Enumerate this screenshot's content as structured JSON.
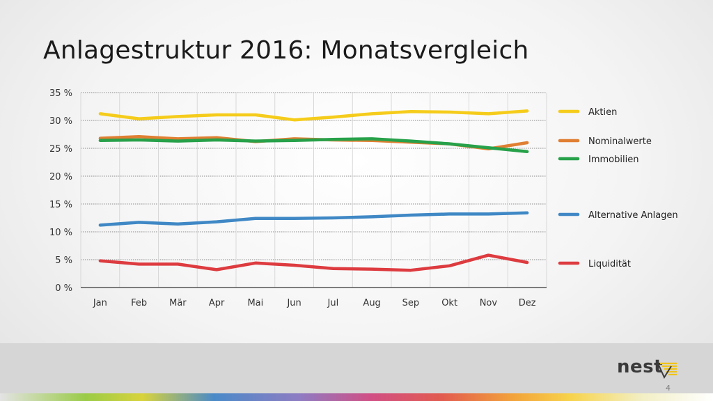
{
  "title": "Anlagestruktur 2016: Monatsvergleich",
  "page_number": "4",
  "logo": {
    "text": "nest"
  },
  "chart_data": {
    "type": "line",
    "categories": [
      "Jan",
      "Feb",
      "Mär",
      "Apr",
      "Mai",
      "Jun",
      "Jul",
      "Aug",
      "Sep",
      "Okt",
      "Nov",
      "Dez"
    ],
    "y_ticks": [
      "0 %",
      "5 %",
      "10 %",
      "15 %",
      "20 %",
      "25 %",
      "30 %",
      "35 %"
    ],
    "ylim": [
      0,
      35
    ],
    "grid": true,
    "legend_position": "right",
    "series": [
      {
        "name": "Aktien",
        "color": "#f5cc1b",
        "values": [
          31.2,
          30.3,
          30.7,
          31.0,
          31.0,
          30.1,
          30.6,
          31.2,
          31.6,
          31.5,
          31.2,
          31.7
        ]
      },
      {
        "name": "Nominalwerte",
        "color": "#e07f32",
        "values": [
          26.8,
          27.1,
          26.7,
          26.9,
          26.2,
          26.7,
          26.5,
          26.4,
          26.1,
          25.8,
          24.9,
          26.0
        ]
      },
      {
        "name": "Immobilien",
        "color": "#27a14a",
        "values": [
          26.4,
          26.5,
          26.3,
          26.5,
          26.3,
          26.4,
          26.6,
          26.7,
          26.3,
          25.8,
          25.1,
          24.4
        ]
      },
      {
        "name": "Alternative Anlagen",
        "color": "#3f88c5",
        "values": [
          11.2,
          11.7,
          11.4,
          11.8,
          12.4,
          12.4,
          12.5,
          12.7,
          13.0,
          13.2,
          13.2,
          13.4
        ]
      },
      {
        "name": "Liquidität",
        "color": "#dd3b3f",
        "values": [
          4.8,
          4.2,
          4.2,
          3.2,
          4.4,
          4.0,
          3.4,
          3.3,
          3.1,
          3.9,
          5.8,
          4.5
        ]
      }
    ]
  }
}
